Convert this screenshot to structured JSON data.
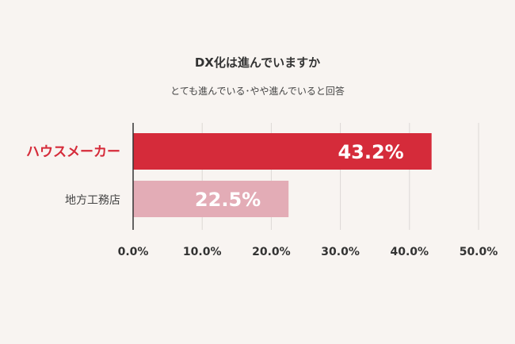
{
  "chart_data": {
    "type": "bar",
    "orientation": "horizontal",
    "title": "DX化は進んでいますか",
    "subtitle": "とても進んでいる･やや進んでいると回答",
    "categories": [
      "ハウスメーカー",
      "地方工務店"
    ],
    "values": [
      43.2,
      22.5
    ],
    "value_labels": [
      "43.2%",
      "22.5%"
    ],
    "xlim": [
      0,
      50
    ],
    "xticks": [
      "0.0%",
      "10.0%",
      "20.0%",
      "30.0%",
      "40.0%",
      "50.0%"
    ],
    "grid": true,
    "colors": {
      "bar_primary": "#d52b3a",
      "bar_secondary": "#e3acb6",
      "label_primary": "#d52b3a",
      "label_secondary": "#444444",
      "grid": "#dcd8d5",
      "axis": "#333333",
      "tick_label": "#333333"
    }
  }
}
